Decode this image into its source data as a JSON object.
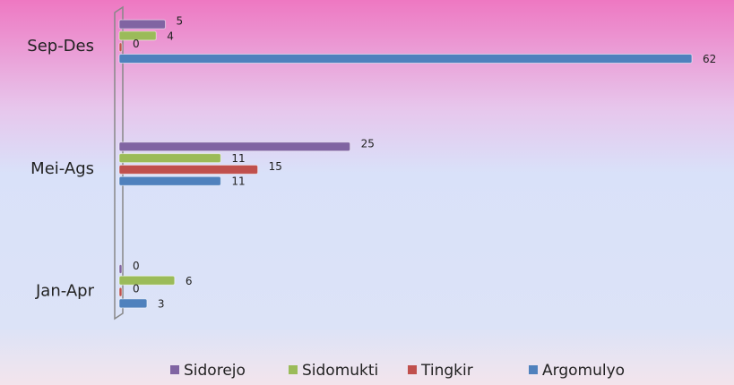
{
  "chart_data": {
    "type": "bar",
    "orientation": "horizontal",
    "categories": [
      "Jan-Apr",
      "Mei-Ags",
      "Sep-Des"
    ],
    "series": [
      {
        "name": "Sidorejo",
        "color": "#8064a2",
        "values": [
          0,
          25,
          5
        ]
      },
      {
        "name": "Sidomukti",
        "color": "#9bbb59",
        "values": [
          6,
          11,
          4
        ]
      },
      {
        "name": "Tingkir",
        "color": "#c0504d",
        "values": [
          0,
          15,
          0
        ]
      },
      {
        "name": "Argomulyo",
        "color": "#4f81bd",
        "values": [
          3,
          11,
          62
        ]
      }
    ],
    "xlim": [
      0,
      62
    ],
    "legend": "bottom"
  }
}
